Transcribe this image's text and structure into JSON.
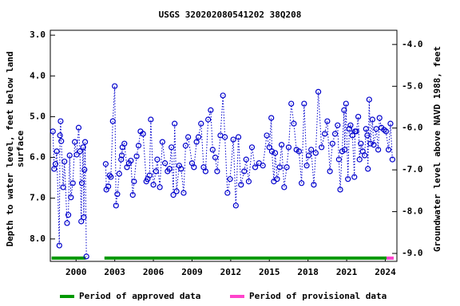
{
  "chart_data": {
    "type": "scatter-line",
    "title": "USGS 320202080541202 38Q208",
    "ylabel": [
      "Depth to water level, feet below land",
      "surface"
    ],
    "y2label": "Groundwater level above NAVD 1988, feet",
    "color": "#0000cc",
    "x": [
      1998.2,
      1998.3,
      1998.4,
      1998.5,
      1998.7,
      1998.75,
      1998.8,
      1998.85,
      1999.0,
      1999.1,
      1999.3,
      1999.4,
      1999.5,
      1999.6,
      1999.75,
      1999.9,
      2000.05,
      2000.2,
      2000.3,
      2000.4,
      2000.45,
      2000.55,
      2000.6,
      2000.65,
      2000.7,
      2000.8,
      2001.5,
      2002.3,
      2002.35,
      2002.5,
      2002.6,
      2002.7,
      2002.85,
      2003.0,
      2003.1,
      2003.2,
      2003.35,
      2003.5,
      2003.55,
      2003.6,
      2003.75,
      2003.95,
      2004.1,
      2004.25,
      2004.4,
      2004.5,
      2004.7,
      2004.85,
      2005.0,
      2005.2,
      2005.45,
      2005.55,
      2005.7,
      2005.8,
      2006.0,
      2006.2,
      2006.3,
      2006.5,
      2006.7,
      2006.9,
      2007.1,
      2007.25,
      2007.4,
      2007.55,
      2007.65,
      2007.8,
      2008.0,
      2008.15,
      2008.35,
      2008.5,
      2008.7,
      2009.0,
      2009.15,
      2009.35,
      2009.5,
      2009.7,
      2009.9,
      2010.05,
      2010.25,
      2010.45,
      2010.6,
      2010.8,
      2010.95,
      2011.2,
      2011.4,
      2011.55,
      2011.75,
      2011.95,
      2012.2,
      2012.4,
      2012.6,
      2012.8,
      2013.05,
      2013.2,
      2013.4,
      2013.65,
      2013.9,
      2014.2,
      2014.5,
      2014.8,
      2015.0,
      2015.15,
      2015.2,
      2015.35,
      2015.45,
      2015.6,
      2015.8,
      2015.95,
      2016.15,
      2016.35,
      2016.5,
      2016.7,
      2016.9,
      2017.1,
      2017.3,
      2017.5,
      2017.7,
      2017.9,
      2018.05,
      2018.25,
      2018.45,
      2018.6,
      2018.8,
      2019.05,
      2019.3,
      2019.5,
      2019.7,
      2019.9,
      2020.1,
      2020.3,
      2020.4,
      2020.5,
      2020.65,
      2020.8,
      2020.85,
      2020.95,
      2021.1,
      2021.2,
      2021.3,
      2021.45,
      2021.6,
      2021.65,
      2021.75,
      2021.9,
      2022.0,
      2022.1,
      2022.25,
      2022.4,
      2022.5,
      2022.6,
      2022.65,
      2022.75,
      2022.85,
      2023.0,
      2023.1,
      2023.3,
      2023.45,
      2023.55,
      2023.7,
      2023.9,
      2024.05,
      2024.25,
      2024.4,
      2024.55
    ],
    "values": [
      5.36,
      6.28,
      6.16,
      5.85,
      8.16,
      5.46,
      5.11,
      5.6,
      6.73,
      6.1,
      7.61,
      7.41,
      5.95,
      6.98,
      6.63,
      5.62,
      5.93,
      5.27,
      5.85,
      7.57,
      6.63,
      5.75,
      7.47,
      6.3,
      5.62,
      8.43,
      null,
      6.16,
      6.79,
      6.71,
      6.44,
      6.48,
      5.11,
      4.25,
      7.18,
      6.9,
      6.4,
      6.05,
      5.95,
      5.75,
      5.66,
      6.24,
      6.14,
      6.08,
      6.92,
      6.59,
      5.97,
      5.71,
      5.36,
      5.42,
      6.59,
      6.53,
      6.44,
      5.07,
      6.67,
      6.34,
      6.05,
      6.73,
      5.62,
      6.14,
      6.34,
      6.28,
      5.75,
      6.92,
      5.17,
      6.83,
      6.2,
      6.28,
      6.87,
      5.71,
      5.5,
      6.14,
      6.24,
      5.62,
      5.5,
      5.17,
      6.24,
      6.34,
      5.07,
      4.84,
      5.81,
      6.0,
      6.34,
      5.46,
      4.48,
      5.5,
      6.87,
      6.53,
      5.56,
      7.18,
      5.5,
      6.67,
      6.34,
      6.05,
      6.59,
      5.75,
      6.24,
      6.14,
      6.2,
      5.46,
      5.75,
      5.03,
      5.85,
      6.59,
      5.89,
      6.53,
      6.24,
      5.69,
      6.73,
      6.24,
      5.75,
      4.68,
      5.17,
      5.81,
      5.85,
      6.63,
      4.68,
      6.2,
      5.95,
      5.81,
      6.67,
      5.89,
      4.39,
      5.75,
      5.42,
      5.11,
      6.34,
      5.66,
      5.42,
      5.21,
      6.05,
      6.79,
      5.85,
      4.84,
      5.81,
      4.68,
      6.53,
      5.3,
      5.21,
      5.46,
      6.48,
      5.36,
      5.36,
      5.0,
      6.05,
      5.66,
      5.85,
      5.95,
      5.3,
      5.46,
      6.28,
      4.58,
      5.66,
      5.07,
      5.69,
      5.3,
      5.81,
      5.03,
      5.27,
      5.32,
      5.36,
      5.81,
      5.17,
      6.05
    ],
    "xlim": [
      1998.0,
      2024.9
    ],
    "xticks": [
      2000,
      2003,
      2006,
      2009,
      2012,
      2015,
      2018,
      2021,
      2024
    ],
    "ylim": [
      2.88,
      8.55
    ],
    "yticks": [
      {
        "value": 3,
        "label": "3.0"
      },
      {
        "value": 4,
        "label": "4.0"
      },
      {
        "value": 5,
        "label": "5.0"
      },
      {
        "value": 6,
        "label": "6.0"
      },
      {
        "value": 7,
        "label": "7.0"
      },
      {
        "value": 8,
        "label": "8.0"
      }
    ],
    "y2lim": [
      -3.66,
      -9.19
    ],
    "y2ticks": [
      {
        "value": -4,
        "label": "-4.0"
      },
      {
        "value": -5,
        "label": "-5.0"
      },
      {
        "value": -6,
        "label": "-6.0"
      },
      {
        "value": -7,
        "label": "-7.0"
      },
      {
        "value": -8,
        "label": "-8.0"
      },
      {
        "value": -9,
        "label": "-9.0"
      }
    ],
    "periods": [
      {
        "name": "Period of approved data",
        "color": "#009900",
        "spans": [
          [
            1998.1,
            2000.75
          ],
          [
            2002.2,
            2024.1
          ]
        ]
      },
      {
        "name": "Period of provisional data",
        "color": "#ff44cc",
        "spans": [
          [
            2024.1,
            2024.65
          ]
        ]
      }
    ],
    "period_level": 8.47
  }
}
